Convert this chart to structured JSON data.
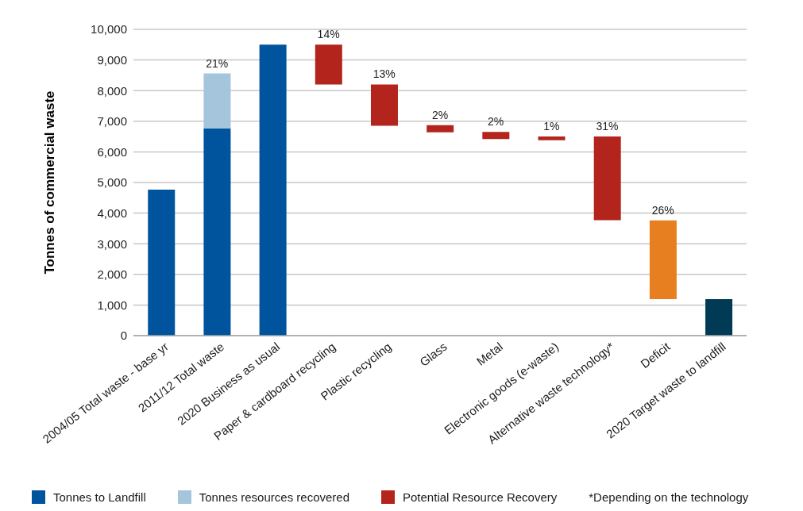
{
  "chart_data": {
    "type": "bar",
    "ylabel": "Tonnes of commercial waste",
    "categories": [
      "2004/05 Total waste - base yr",
      "2011/12 Total waste",
      "2020 Business as usual",
      "Paper & cardboard recycling",
      "Plastic recycling",
      "Glass",
      "Metal",
      "Electronic goods (e-waste)",
      "Alternative waste technology*",
      "Deficit",
      "2020 Target waste to landfill"
    ],
    "series": [
      {
        "name": "Tonnes to Landfill",
        "color": "#00549d",
        "values": [
          4770,
          6760,
          9500,
          null,
          null,
          null,
          null,
          null,
          null,
          null,
          null
        ]
      },
      {
        "name": "Tonnes resources recovered",
        "color": "#a4c5db",
        "values": [
          null,
          1800,
          null,
          null,
          null,
          null,
          null,
          null,
          null,
          null,
          null
        ]
      },
      {
        "name": "Potential Resource Recovery",
        "color": "#b3241c",
        "values": [
          null,
          null,
          null,
          1300,
          1350,
          230,
          230,
          120,
          2730,
          null,
          null
        ],
        "base": [
          null,
          null,
          null,
          8200,
          6850,
          6640,
          6420,
          6380,
          3770,
          null,
          null
        ]
      },
      {
        "color": "#e77e20",
        "values": [
          null,
          null,
          null,
          null,
          null,
          null,
          null,
          null,
          null,
          2570,
          null
        ],
        "base": [
          null,
          null,
          null,
          null,
          null,
          null,
          null,
          null,
          null,
          1190,
          null
        ]
      },
      {
        "color": "#003a54",
        "values": [
          null,
          null,
          null,
          null,
          null,
          null,
          null,
          null,
          null,
          null,
          1190
        ]
      }
    ],
    "stacked": true,
    "ylim": [
      0,
      10000
    ],
    "yticks": [
      0,
      {
        "value": 1000,
        "label": "1,000"
      },
      {
        "value": 2000,
        "label": "2,000"
      },
      {
        "value": 3000,
        "label": "3,000"
      },
      {
        "value": 4000,
        "label": "4,000"
      },
      {
        "value": 5000,
        "label": "5,000"
      },
      {
        "value": 6000,
        "label": "6,000"
      },
      {
        "value": 7000,
        "label": "7,000"
      },
      {
        "value": 8000,
        "label": "8,000"
      },
      {
        "value": 9000,
        "label": "9,000"
      },
      {
        "value": 10000,
        "label": "10,000"
      }
    ],
    "grid": "y",
    "legend": "bottom",
    "annotations": [
      {
        "text": "21%",
        "x": "2011/12 Total waste",
        "y": 8560
      },
      {
        "text": "14%",
        "x": "Paper & cardboard recycling",
        "y": 9500
      },
      {
        "text": "13%",
        "x": "Plastic recycling",
        "y": 8200
      },
      {
        "text": "2%",
        "x": "Glass",
        "y": 6870
      },
      {
        "text": "2%",
        "x": "Metal",
        "y": 6650
      },
      {
        "text": "1%",
        "x": "Electronic goods (e-waste)",
        "y": 6500
      },
      {
        "text": "31%",
        "x": "Alternative waste technology*",
        "y": 6500
      },
      {
        "text": "26%",
        "x": "Deficit",
        "y": 3760
      },
      "*Depending on the technology"
    ]
  }
}
